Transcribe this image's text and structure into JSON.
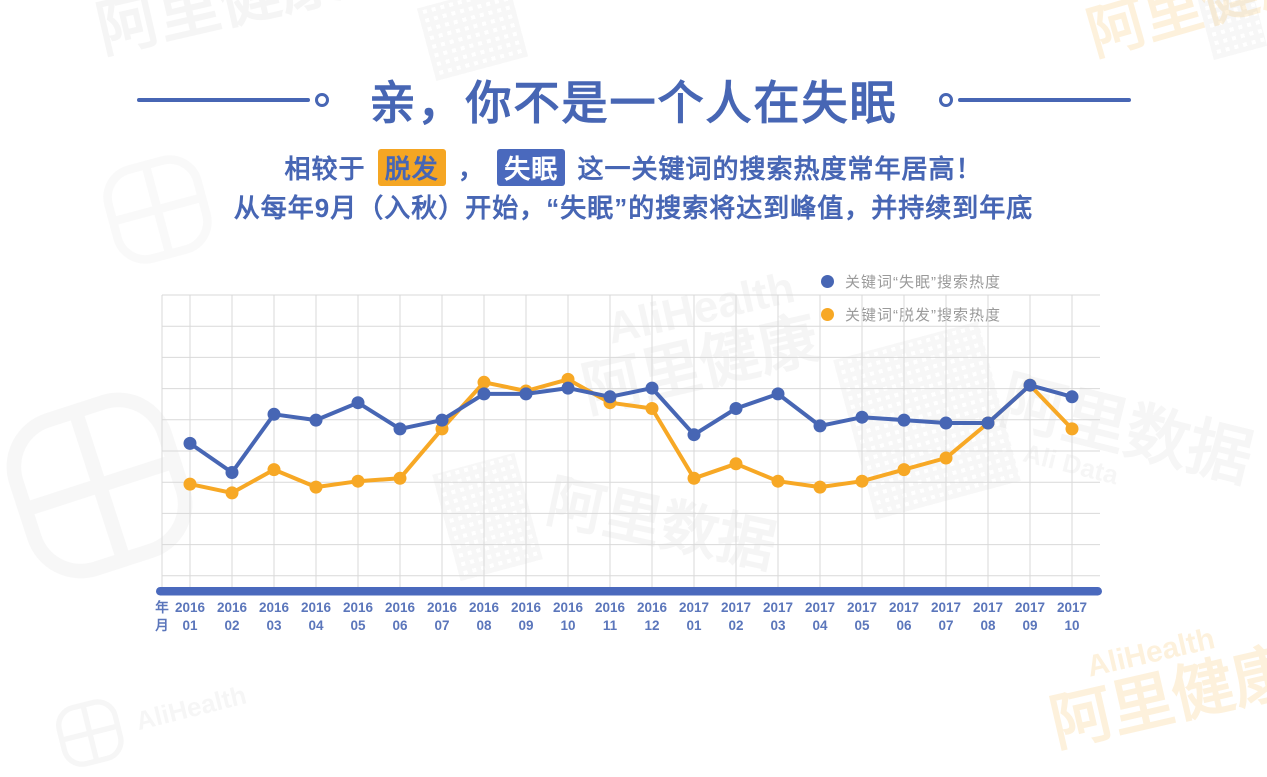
{
  "header": {
    "title": "亲，你不是一个人在失眠",
    "subtitle_line1": {
      "prefix": "相较于",
      "hairloss_highlight": "脱发",
      "separator": "，",
      "insomnia_highlight": "失眠",
      "suffix": "这一关键词的搜索热度常年居高！"
    },
    "subtitle_line2": "从每年9月（入秋）开始，“失眠”的搜索将达到峰值，并持续到年底"
  },
  "legend": {
    "items": [
      {
        "label": "关键词“失眠”搜索热度",
        "color": "#4766b4"
      },
      {
        "label": "关键词“脱发”搜索热度",
        "color": "#f7a825"
      }
    ]
  },
  "axis_unit": {
    "year": "年",
    "month": "月"
  },
  "chart_data": {
    "type": "line",
    "x_years": [
      "2016",
      "2016",
      "2016",
      "2016",
      "2016",
      "2016",
      "2016",
      "2016",
      "2016",
      "2016",
      "2016",
      "2016",
      "2017",
      "2017",
      "2017",
      "2017",
      "2017",
      "2017",
      "2017",
      "2017",
      "2017",
      "2017"
    ],
    "x_months": [
      "01",
      "02",
      "03",
      "04",
      "05",
      "06",
      "07",
      "08",
      "09",
      "10",
      "11",
      "12",
      "01",
      "02",
      "03",
      "04",
      "05",
      "06",
      "07",
      "08",
      "09",
      "10"
    ],
    "series": [
      {
        "name": "关键词“失眠”搜索热度",
        "key": "insomnia",
        "color": "#4766b4",
        "values": [
          49,
          39,
          59,
          57,
          63,
          54,
          57,
          66,
          66,
          68,
          65,
          68,
          52,
          61,
          66,
          55,
          58,
          57,
          56,
          56,
          69,
          65
        ]
      },
      {
        "name": "关键词“脱发”搜索热度",
        "key": "hairloss",
        "color": "#f7a825",
        "values": [
          35,
          32,
          40,
          34,
          36,
          37,
          54,
          70,
          67,
          71,
          63,
          61,
          37,
          42,
          36,
          34,
          36,
          40,
          44,
          56,
          69,
          54
        ]
      }
    ],
    "ylim": [
      0,
      100
    ],
    "grid": true,
    "legend_position": "top-right",
    "x_axis_color": "#4a69bd",
    "tick_label_color": "#5b76bb",
    "grid_color": "#d9d9d9"
  },
  "watermarks": {
    "alihealth_en": "AliHealth",
    "alihealth_cn": "阿里健康",
    "alidata_cn": "阿里数据",
    "alidata_en": "Ali Data"
  },
  "colors": {
    "title_blue": "#4766b4",
    "highlight_orange_bg": "#f5a623",
    "highlight_blue_bg": "#4a69bd",
    "insomnia_blue": "#4766b4",
    "hairloss_yellow": "#f7a825",
    "legend_text": "#9a9a9a"
  }
}
